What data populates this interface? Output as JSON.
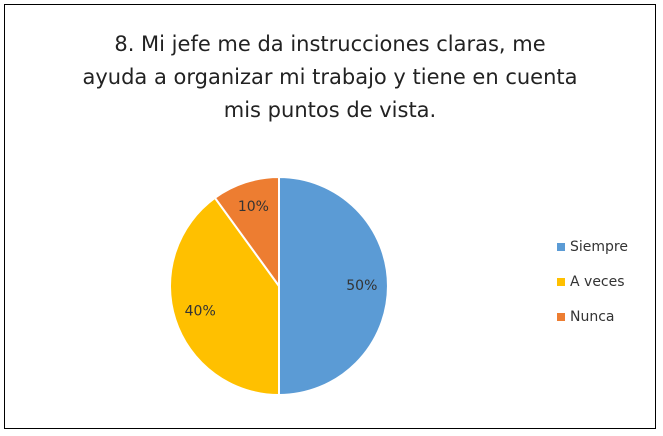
{
  "chart_data": {
    "type": "pie",
    "title": "8. Mi jefe me da instrucciones claras, me ayuda a organizar mi trabajo y tiene en cuenta mis puntos de vista.",
    "categories": [
      "Siempre",
      "A veces",
      "Nunca"
    ],
    "values": [
      50,
      40,
      10
    ],
    "value_labels": [
      "50%",
      "40%",
      "10%"
    ],
    "colors": [
      "#5b9bd5",
      "#ffc000",
      "#ed7d31"
    ],
    "legend": "right"
  }
}
